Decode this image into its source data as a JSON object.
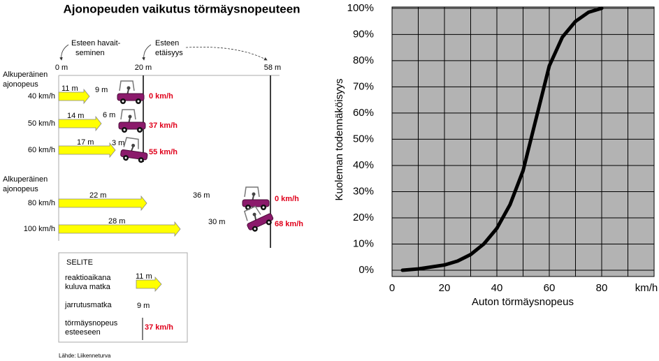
{
  "chart_data": {
    "type": "line",
    "x": [
      4,
      10,
      20,
      25,
      30,
      35,
      40,
      45,
      50,
      55,
      60,
      65,
      70,
      75,
      80
    ],
    "series": [
      {
        "color": "#000000",
        "values": [
          0,
          0.5,
          2,
          3.5,
          6,
          10,
          16,
          25,
          38,
          58,
          78,
          89,
          95,
          98.5,
          100
        ]
      }
    ],
    "xlim": [
      0,
      100
    ],
    "xticks": [
      0,
      20,
      40,
      60,
      80
    ],
    "xminorticks": [
      10,
      30,
      50,
      70,
      90
    ],
    "x_unit": "km/h",
    "ylim": [
      -2.4,
      100.5
    ],
    "yticks": [
      {
        "value": 0,
        "label": "0%"
      },
      {
        "value": 10,
        "label": "10%"
      },
      {
        "value": 20,
        "label": "20%"
      },
      {
        "value": 30,
        "label": "30%"
      },
      {
        "value": 40,
        "label": "40%"
      },
      {
        "value": 50,
        "label": "50%"
      },
      {
        "value": 60,
        "label": "60%"
      },
      {
        "value": 70,
        "label": "70%"
      },
      {
        "value": 80,
        "label": "80%"
      },
      {
        "value": 90,
        "label": "90%"
      },
      {
        "value": 100,
        "label": "100%"
      }
    ],
    "grid": true,
    "plot_background": "#b3b3b3",
    "xlabel": "Auton törmäysnopeus",
    "ylabel": "Kuoleman todennäköisyys"
  },
  "diagram": {
    "title": "Ajonopeuden vaikutus törmäysnopeuteen",
    "annotations": {
      "detection": [
        "Esteen havait-",
        "seminen"
      ],
      "distance": [
        "Esteen",
        "etäisyys"
      ]
    },
    "distance_marks": [
      "0 m",
      "20 m",
      "58 m"
    ],
    "groups": [
      {
        "label": [
          "Alkuperäinen",
          "ajonopeus"
        ],
        "rows": [
          {
            "speed": "40 km/h",
            "reaction": "11 m",
            "braking": "9 m",
            "impact": "0 km/h"
          },
          {
            "speed": "50 km/h",
            "reaction": "14 m",
            "braking": "6 m",
            "impact": "37 km/h"
          },
          {
            "speed": "60 km/h",
            "reaction": "17 m",
            "braking": "3 m",
            "impact": "55 km/h"
          }
        ]
      },
      {
        "label": [
          "Alkuperäinen",
          "ajonopeus"
        ],
        "rows": [
          {
            "speed": "80 km/h",
            "reaction": "22 m",
            "braking": "36 m",
            "impact": "0 km/h"
          },
          {
            "speed": "100 km/h",
            "reaction": "28 m",
            "braking": "30 m",
            "impact": "68 km/h"
          }
        ]
      }
    ],
    "legend": {
      "title": "SELITE",
      "reaction": [
        "reaktioaikana",
        "kuluva matka"
      ],
      "reaction_example": "11 m",
      "braking": "jarrutusmatka",
      "braking_example": "9 m",
      "impact": [
        "törmäysnopeus",
        "esteeseen"
      ],
      "impact_example": "37 km/h"
    },
    "source": "Lähde: Liikenneturva"
  }
}
